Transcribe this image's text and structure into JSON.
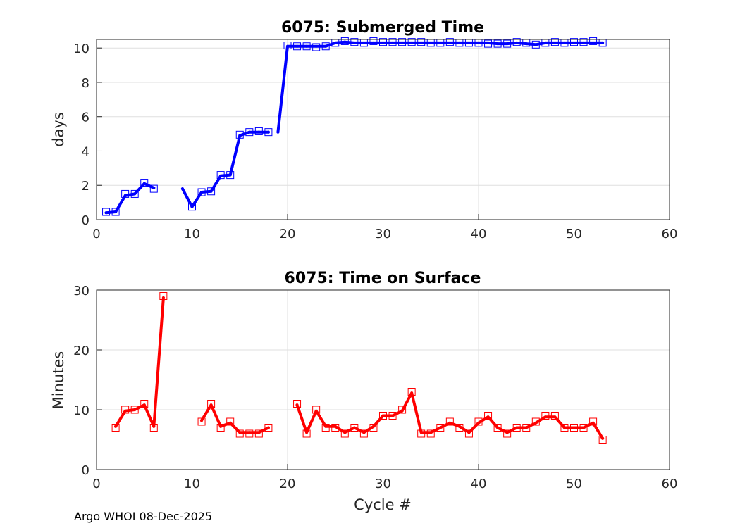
{
  "chart_data": [
    {
      "type": "line",
      "title": "6075: Submerged Time",
      "xlabel": "",
      "ylabel": "days",
      "xlim": [
        0,
        60
      ],
      "ylim": [
        0,
        10.5
      ],
      "xticks": [
        0,
        10,
        20,
        30,
        40,
        50,
        60
      ],
      "yticks": [
        0,
        2,
        4,
        6,
        8,
        10
      ],
      "grid": true,
      "color": "#0000ff",
      "series": [
        {
          "name": "line",
          "segments": [
            [
              [
                1,
                0.4
              ],
              [
                2,
                0.45
              ],
              [
                3,
                1.4
              ],
              [
                4,
                1.5
              ],
              [
                5,
                2.1
              ],
              [
                6,
                1.85
              ]
            ],
            [
              [
                9,
                1.8
              ],
              [
                10,
                0.75
              ],
              [
                11,
                1.6
              ],
              [
                12,
                1.65
              ],
              [
                13,
                2.55
              ],
              [
                14,
                2.6
              ],
              [
                15,
                4.9
              ],
              [
                16,
                5.1
              ],
              [
                17,
                5.1
              ],
              [
                18,
                5.1
              ]
            ],
            [
              [
                19,
                5.1
              ],
              [
                20,
                10.1
              ],
              [
                21,
                10.1
              ],
              [
                22,
                10.1
              ],
              [
                23,
                10.1
              ],
              [
                24,
                10.1
              ],
              [
                25,
                10.3
              ],
              [
                26,
                10.35
              ],
              [
                27,
                10.3
              ],
              [
                28,
                10.3
              ],
              [
                29,
                10.3
              ],
              [
                30,
                10.3
              ],
              [
                31,
                10.3
              ],
              [
                32,
                10.3
              ],
              [
                33,
                10.3
              ],
              [
                34,
                10.3
              ],
              [
                35,
                10.3
              ],
              [
                36,
                10.3
              ],
              [
                37,
                10.3
              ],
              [
                38,
                10.3
              ],
              [
                39,
                10.3
              ],
              [
                40,
                10.3
              ],
              [
                41,
                10.3
              ],
              [
                42,
                10.25
              ],
              [
                43,
                10.25
              ],
              [
                44,
                10.3
              ],
              [
                45,
                10.25
              ],
              [
                46,
                10.2
              ],
              [
                47,
                10.3
              ],
              [
                48,
                10.3
              ],
              [
                49,
                10.3
              ],
              [
                50,
                10.3
              ],
              [
                51,
                10.3
              ],
              [
                52,
                10.3
              ],
              [
                53,
                10.3
              ]
            ]
          ]
        },
        {
          "name": "markers",
          "points": [
            [
              1,
              0.45
            ],
            [
              2,
              0.45
            ],
            [
              3,
              1.5
            ],
            [
              4,
              1.5
            ],
            [
              5,
              2.15
            ],
            [
              6,
              1.8
            ],
            [
              10,
              0.75
            ],
            [
              11,
              1.6
            ],
            [
              12,
              1.65
            ],
            [
              13,
              2.6
            ],
            [
              14,
              2.6
            ],
            [
              15,
              4.95
            ],
            [
              16,
              5.1
            ],
            [
              17,
              5.15
            ],
            [
              18,
              5.1
            ],
            [
              20,
              10.15
            ],
            [
              21,
              10.1
            ],
            [
              22,
              10.1
            ],
            [
              23,
              10.05
            ],
            [
              24,
              10.1
            ],
            [
              25,
              10.3
            ],
            [
              26,
              10.4
            ],
            [
              27,
              10.35
            ],
            [
              28,
              10.3
            ],
            [
              29,
              10.4
            ],
            [
              30,
              10.35
            ],
            [
              31,
              10.35
            ],
            [
              32,
              10.35
            ],
            [
              33,
              10.35
            ],
            [
              34,
              10.35
            ],
            [
              35,
              10.3
            ],
            [
              36,
              10.3
            ],
            [
              37,
              10.35
            ],
            [
              38,
              10.3
            ],
            [
              39,
              10.3
            ],
            [
              40,
              10.3
            ],
            [
              41,
              10.25
            ],
            [
              42,
              10.25
            ],
            [
              43,
              10.25
            ],
            [
              44,
              10.35
            ],
            [
              45,
              10.3
            ],
            [
              46,
              10.2
            ],
            [
              47,
              10.3
            ],
            [
              48,
              10.35
            ],
            [
              49,
              10.3
            ],
            [
              50,
              10.35
            ],
            [
              51,
              10.35
            ],
            [
              52,
              10.4
            ],
            [
              53,
              10.3
            ]
          ]
        }
      ]
    },
    {
      "type": "line",
      "title": "6075: Time on Surface",
      "xlabel": "Cycle #",
      "ylabel": "Minutes",
      "xlim": [
        0,
        60
      ],
      "ylim": [
        0,
        30
      ],
      "xticks": [
        0,
        10,
        20,
        30,
        40,
        50,
        60
      ],
      "yticks": [
        0,
        10,
        20,
        30
      ],
      "grid": true,
      "color": "#ff0000",
      "series": [
        {
          "name": "line",
          "segments": [
            [
              [
                2,
                7.2
              ],
              [
                3,
                9.8
              ],
              [
                4,
                10
              ],
              [
                5,
                10.8
              ],
              [
                6,
                7.2
              ],
              [
                7,
                28.7
              ]
            ],
            [
              [
                11,
                8.2
              ],
              [
                12,
                10.8
              ],
              [
                13,
                7.2
              ],
              [
                14,
                7.8
              ],
              [
                15,
                6.2
              ],
              [
                16,
                6.2
              ],
              [
                17,
                6.2
              ],
              [
                18,
                7
              ]
            ],
            [
              [
                21,
                10.8
              ],
              [
                22,
                6.2
              ],
              [
                23,
                9.8
              ],
              [
                24,
                7.2
              ],
              [
                25,
                7.2
              ],
              [
                26,
                6.2
              ],
              [
                27,
                7
              ],
              [
                28,
                6.2
              ],
              [
                29,
                7.2
              ],
              [
                30,
                9
              ],
              [
                31,
                9
              ],
              [
                32,
                9.8
              ],
              [
                33,
                12.8
              ],
              [
                34,
                6.2
              ],
              [
                35,
                6.2
              ],
              [
                36,
                7
              ],
              [
                37,
                7.8
              ],
              [
                38,
                7.2
              ],
              [
                39,
                6.2
              ],
              [
                40,
                7.8
              ],
              [
                41,
                8.8
              ],
              [
                42,
                7
              ],
              [
                43,
                6.2
              ],
              [
                44,
                7
              ],
              [
                45,
                7
              ],
              [
                46,
                7.8
              ],
              [
                47,
                8.8
              ],
              [
                48,
                8.8
              ],
              [
                49,
                7
              ],
              [
                50,
                7
              ],
              [
                51,
                7
              ],
              [
                52,
                7.8
              ],
              [
                53,
                5.2
              ]
            ]
          ]
        },
        {
          "name": "markers",
          "points": [
            [
              2,
              7
            ],
            [
              3,
              10
            ],
            [
              4,
              10
            ],
            [
              5,
              11
            ],
            [
              6,
              7
            ],
            [
              7,
              29
            ],
            [
              11,
              8
            ],
            [
              12,
              11
            ],
            [
              13,
              7
            ],
            [
              14,
              8
            ],
            [
              15,
              6
            ],
            [
              16,
              6
            ],
            [
              17,
              6
            ],
            [
              18,
              7
            ],
            [
              21,
              11
            ],
            [
              22,
              6
            ],
            [
              23,
              10
            ],
            [
              24,
              7
            ],
            [
              25,
              7
            ],
            [
              26,
              6
            ],
            [
              27,
              7
            ],
            [
              28,
              6
            ],
            [
              29,
              7
            ],
            [
              30,
              9
            ],
            [
              31,
              9
            ],
            [
              32,
              10
            ],
            [
              33,
              13
            ],
            [
              34,
              6
            ],
            [
              35,
              6
            ],
            [
              36,
              7
            ],
            [
              37,
              8
            ],
            [
              38,
              7
            ],
            [
              39,
              6
            ],
            [
              40,
              8
            ],
            [
              41,
              9
            ],
            [
              42,
              7
            ],
            [
              43,
              6
            ],
            [
              44,
              7
            ],
            [
              45,
              7
            ],
            [
              46,
              8
            ],
            [
              47,
              9
            ],
            [
              48,
              9
            ],
            [
              49,
              7
            ],
            [
              50,
              7
            ],
            [
              51,
              7
            ],
            [
              52,
              8
            ],
            [
              53,
              5
            ]
          ]
        }
      ]
    }
  ],
  "footer": "Argo WHOI 08-Dec-2025"
}
